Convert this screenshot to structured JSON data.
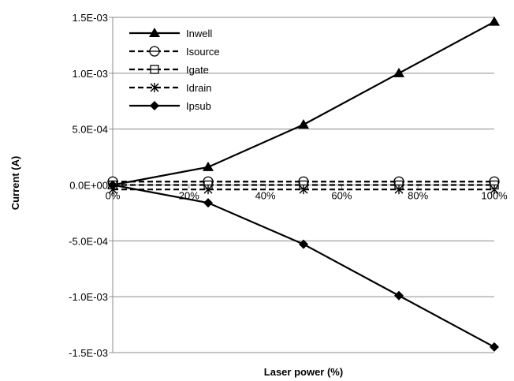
{
  "chart_data": {
    "type": "line",
    "xlabel": "Laser power (%)",
    "ylabel": "Current  (A)",
    "x": [
      0,
      25,
      50,
      75,
      100
    ],
    "xlim": [
      0,
      100
    ],
    "xticks": [
      0,
      20,
      40,
      60,
      80,
      100
    ],
    "xtick_labels": [
      "0%",
      "20%",
      "40%",
      "60%",
      "80%",
      "100%"
    ],
    "ylim": [
      -0.0015,
      0.0015
    ],
    "yticks": [
      0.0015,
      0.001,
      0.0005,
      0,
      -0.0005,
      -0.001,
      -0.0015
    ],
    "ytick_labels": [
      "1.5E-03",
      "1.0E-03",
      "5.0E-04",
      "0.0E+00",
      "-5.0E-04",
      "-1.0E-03",
      "-1.5E-03"
    ],
    "grid": "horizontal",
    "legend_position": "top-left",
    "series": [
      {
        "name": "Inwell",
        "marker": "triangle",
        "dash": "solid",
        "values": [
          0,
          0.00016,
          0.00054,
          0.001,
          0.00146
        ]
      },
      {
        "name": "Isource",
        "marker": "circle",
        "dash": "dashed",
        "values": [
          3e-05,
          3e-05,
          3e-05,
          3e-05,
          3e-05
        ]
      },
      {
        "name": "Igate",
        "marker": "square",
        "dash": "dashed",
        "values": [
          0,
          0,
          0,
          0,
          0
        ]
      },
      {
        "name": "Idrain",
        "marker": "asterisk",
        "dash": "dashed",
        "values": [
          -4e-05,
          -4e-05,
          -4e-05,
          -4e-05,
          -4e-05
        ]
      },
      {
        "name": "Ipsub",
        "marker": "diamond",
        "dash": "solid",
        "values": [
          0,
          -0.00016,
          -0.00053,
          -0.00099,
          -0.00145
        ]
      }
    ]
  }
}
